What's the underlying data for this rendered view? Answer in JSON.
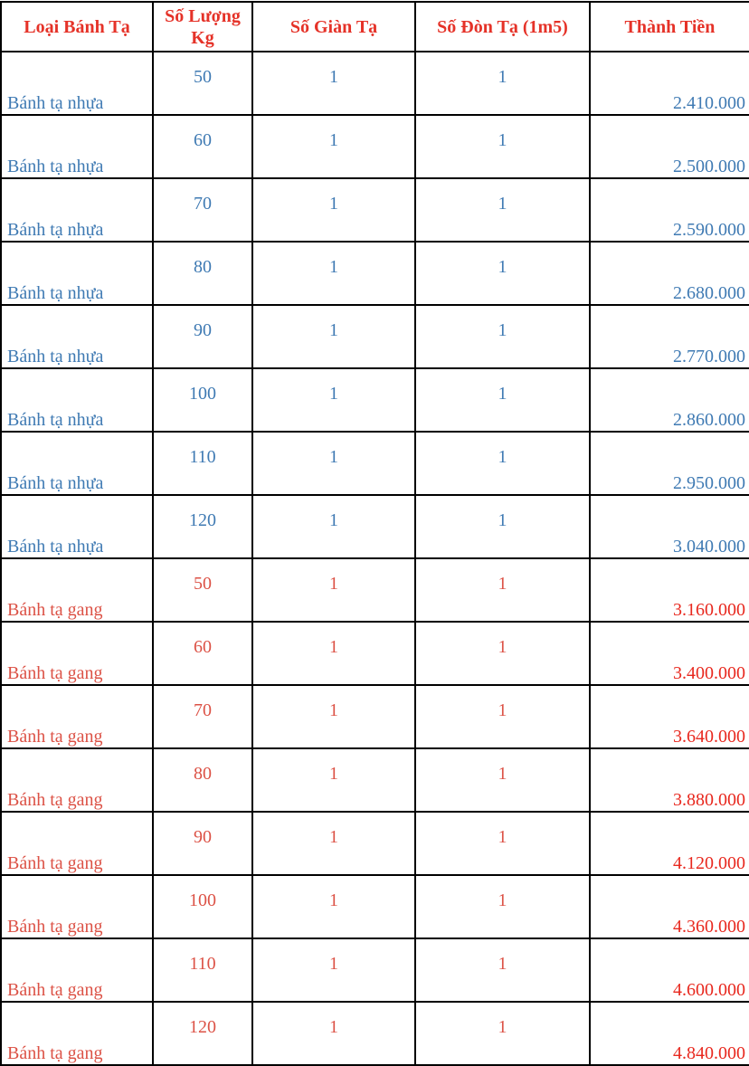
{
  "headers": [
    "Loại Bánh Tạ",
    "Số Lượng Kg",
    "Số Giàn Tạ",
    "Số Đòn Tạ (1m5)",
    "Thành Tiền"
  ],
  "colors": {
    "header": "#e53228",
    "nhua": "#3f7ab3",
    "gang": "#dc5246",
    "gang_amount": "#e8281e"
  },
  "rows": [
    {
      "type": "Bánh tạ nhựa",
      "kg": "50",
      "gian": "1",
      "don": "1",
      "price": "2.410.000",
      "group": "blue"
    },
    {
      "type": "Bánh tạ nhựa",
      "kg": "60",
      "gian": "1",
      "don": "1",
      "price": "2.500.000",
      "group": "blue"
    },
    {
      "type": "Bánh tạ nhựa",
      "kg": "70",
      "gian": "1",
      "don": "1",
      "price": "2.590.000",
      "group": "blue"
    },
    {
      "type": "Bánh tạ nhựa",
      "kg": "80",
      "gian": "1",
      "don": "1",
      "price": "2.680.000",
      "group": "blue"
    },
    {
      "type": "Bánh tạ nhựa",
      "kg": "90",
      "gian": "1",
      "don": "1",
      "price": "2.770.000",
      "group": "blue"
    },
    {
      "type": "Bánh tạ nhựa",
      "kg": "100",
      "gian": "1",
      "don": "1",
      "price": "2.860.000",
      "group": "blue"
    },
    {
      "type": "Bánh tạ nhựa",
      "kg": "110",
      "gian": "1",
      "don": "1",
      "price": "2.950.000",
      "group": "blue"
    },
    {
      "type": "Bánh tạ nhựa",
      "kg": "120",
      "gian": "1",
      "don": "1",
      "price": "3.040.000",
      "group": "blue"
    },
    {
      "type": "Bánh tạ gang",
      "kg": "50",
      "gian": "1",
      "don": "1",
      "price": "3.160.000",
      "group": "red"
    },
    {
      "type": "Bánh tạ gang",
      "kg": "60",
      "gian": "1",
      "don": "1",
      "price": "3.400.000",
      "group": "red"
    },
    {
      "type": "Bánh tạ gang",
      "kg": "70",
      "gian": "1",
      "don": "1",
      "price": "3.640.000",
      "group": "red"
    },
    {
      "type": "Bánh tạ gang",
      "kg": "80",
      "gian": "1",
      "don": "1",
      "price": "3.880.000",
      "group": "red"
    },
    {
      "type": "Bánh tạ gang",
      "kg": "90",
      "gian": "1",
      "don": "1",
      "price": "4.120.000",
      "group": "red"
    },
    {
      "type": "Bánh tạ gang",
      "kg": "100",
      "gian": "1",
      "don": "1",
      "price": "4.360.000",
      "group": "red"
    },
    {
      "type": "Bánh tạ gang",
      "kg": "110",
      "gian": "1",
      "don": "1",
      "price": "4.600.000",
      "group": "red"
    },
    {
      "type": "Bánh tạ gang",
      "kg": "120",
      "gian": "1",
      "don": "1",
      "price": "4.840.000",
      "group": "red"
    }
  ]
}
